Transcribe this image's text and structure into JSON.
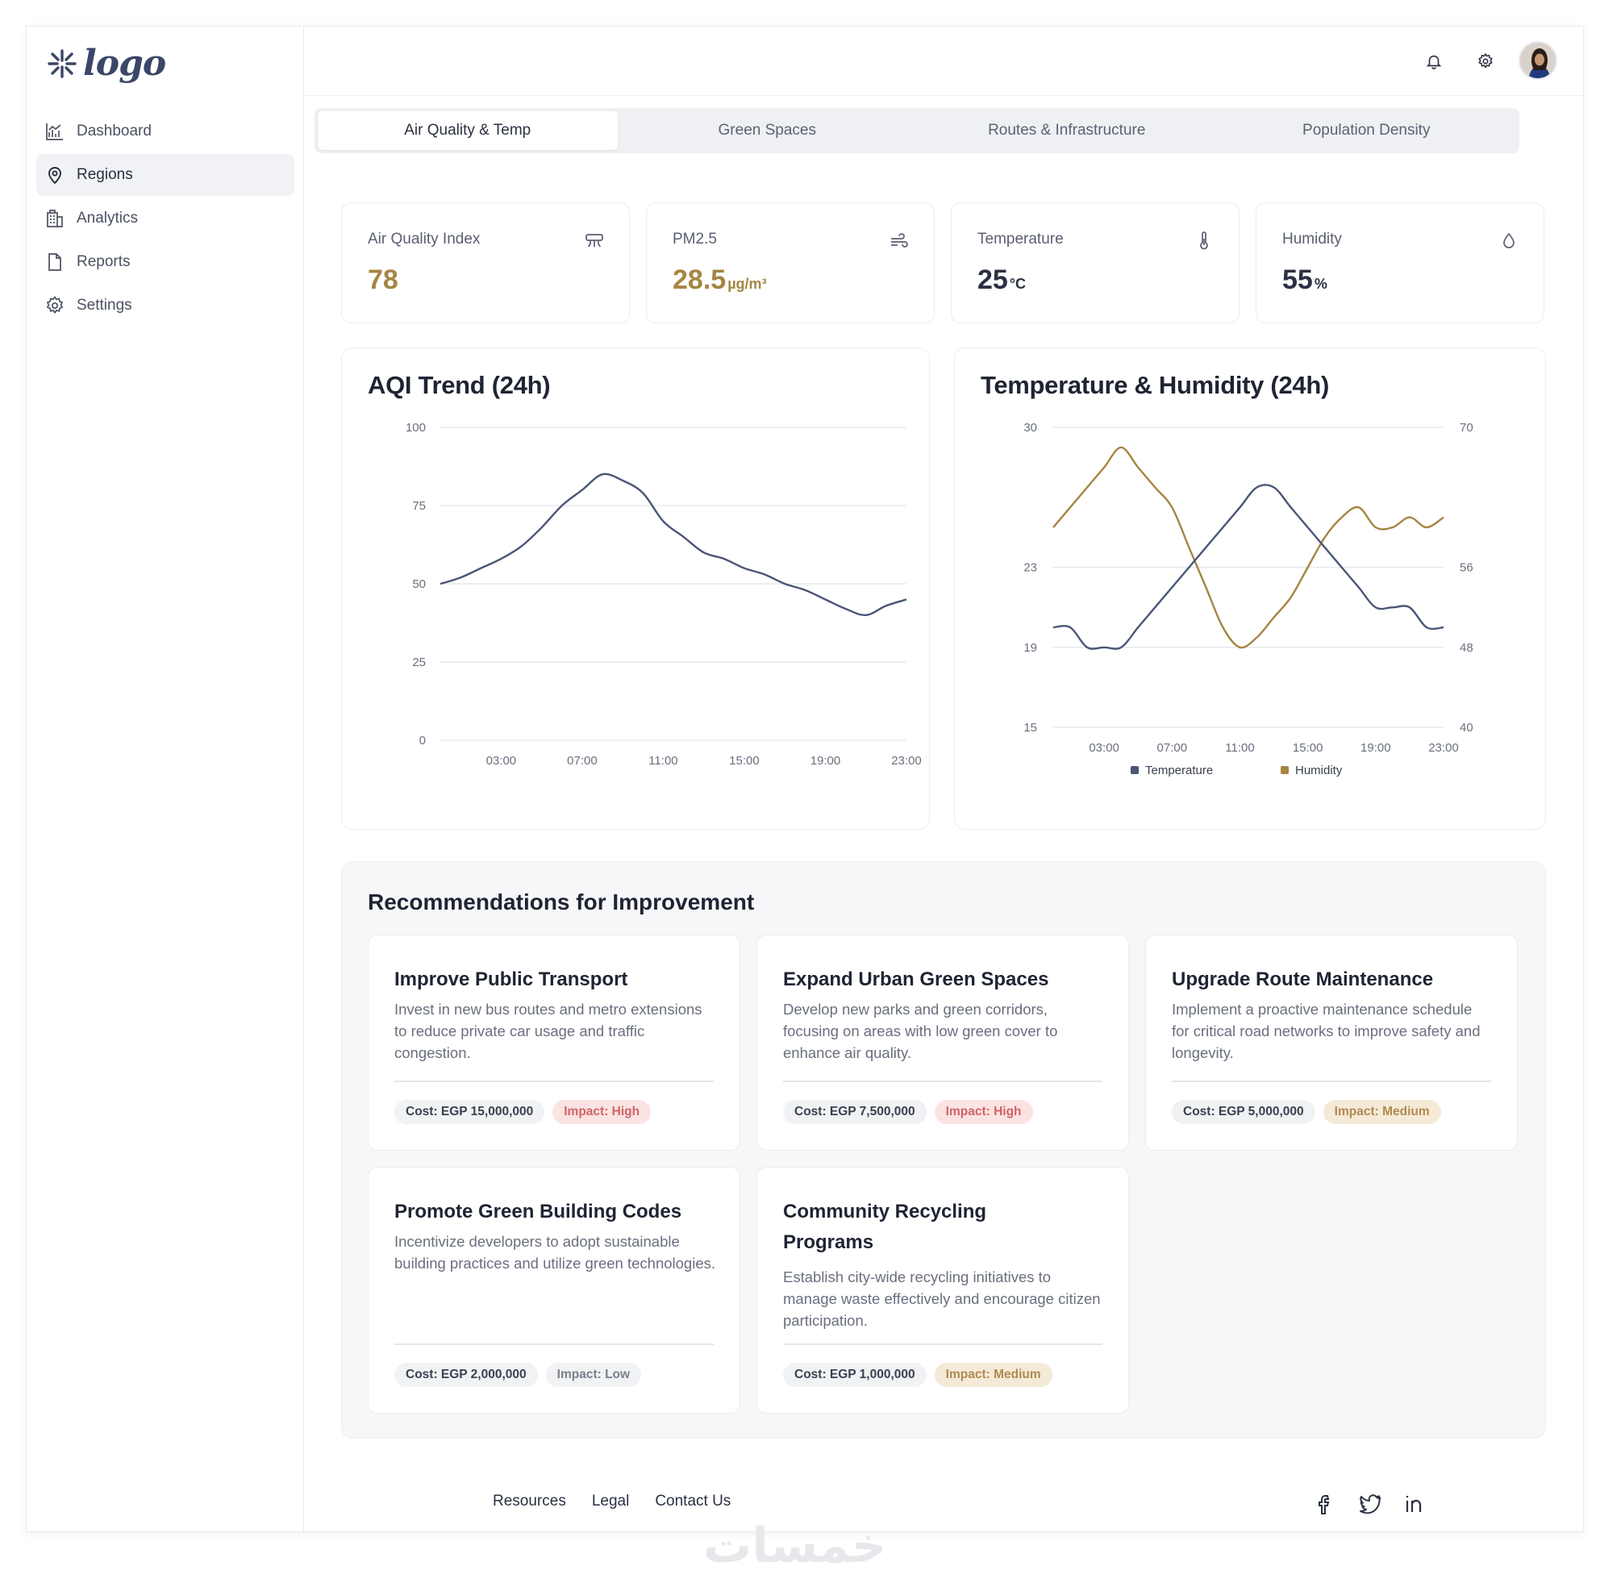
{
  "app": {
    "logo_text": "logo"
  },
  "sidebar": {
    "items": [
      {
        "label": "Dashboard",
        "icon": "chart-icon",
        "active": false
      },
      {
        "label": "Regions",
        "icon": "map-pin-icon",
        "active": true
      },
      {
        "label": "Analytics",
        "icon": "building-icon",
        "active": false
      },
      {
        "label": "Reports",
        "icon": "file-icon",
        "active": false
      },
      {
        "label": "Settings",
        "icon": "gear-icon",
        "active": false
      }
    ]
  },
  "header": {
    "icons": [
      "bell-icon",
      "gear-icon",
      "avatar"
    ]
  },
  "tabs": [
    {
      "label": "Air Quality & Temp",
      "active": true
    },
    {
      "label": "Green Spaces",
      "active": false
    },
    {
      "label": "Routes & Infrastructure",
      "active": false
    },
    {
      "label": "Population Density",
      "active": false
    }
  ],
  "stats": [
    {
      "label": "Air Quality Index",
      "value": "78",
      "unit": "",
      "icon": "air-filter-icon",
      "color": "#a58542"
    },
    {
      "label": "PM2.5",
      "value": "28.5",
      "unit": "µg/m³",
      "icon": "wind-icon",
      "color": "#a58542"
    },
    {
      "label": "Temperature",
      "value": "25",
      "unit": "°C",
      "icon": "thermometer-icon",
      "color": "#1f2433"
    },
    {
      "label": "Humidity",
      "value": "55",
      "unit": "%",
      "icon": "droplet-icon",
      "color": "#1f2433"
    }
  ],
  "colors": {
    "temperature": "#4a5578",
    "humidity": "#a58542",
    "aqi": "#4a5578"
  },
  "chart_data": [
    {
      "type": "line",
      "title": "AQI Trend (24h)",
      "ylim": [
        0,
        100
      ],
      "yticks": [
        "0",
        "25",
        "50",
        "75",
        "100"
      ],
      "xticks": [
        "03:00",
        "07:00",
        "11:00",
        "15:00",
        "19:00",
        "23:00"
      ],
      "x": [
        0,
        1,
        2,
        3,
        4,
        5,
        6,
        7,
        8,
        9,
        10,
        11,
        12,
        13,
        14,
        15,
        16,
        17,
        18,
        19,
        20,
        21,
        22,
        23
      ],
      "series": [
        {
          "values": [
            50,
            52,
            55,
            58,
            62,
            68,
            75,
            80,
            85,
            83,
            79,
            70,
            65,
            60,
            58,
            55,
            53,
            50,
            48,
            45,
            42,
            40,
            43,
            45
          ]
        }
      ]
    },
    {
      "type": "line",
      "title": "Temperature & Humidity (24h)",
      "ylim_left": [
        15,
        30
      ],
      "ylim_right": [
        40,
        70
      ],
      "yticks_left": [
        "15",
        "19",
        "23",
        "30"
      ],
      "yticks_right": [
        "40",
        "48",
        "56",
        "70"
      ],
      "xticks": [
        "03:00",
        "07:00",
        "11:00",
        "15:00",
        "19:00",
        "23:00"
      ],
      "legend_position": "bottom",
      "x": [
        0,
        1,
        2,
        3,
        4,
        5,
        6,
        7,
        8,
        9,
        10,
        11,
        12,
        13,
        14,
        15,
        16,
        17,
        18,
        19,
        20,
        21,
        22,
        23
      ],
      "series": [
        {
          "name": "Temperature",
          "axis": "left",
          "values": [
            20,
            20,
            19,
            19,
            19,
            20,
            21,
            22,
            23,
            24,
            25,
            26,
            27,
            27,
            26,
            25,
            24,
            23,
            22,
            21,
            21,
            21,
            20,
            20
          ]
        },
        {
          "name": "Humidity",
          "axis": "right",
          "values": [
            60,
            62,
            64,
            66,
            68,
            66,
            64,
            62,
            58,
            54,
            50,
            48,
            49,
            51,
            53,
            56,
            59,
            61,
            62,
            60,
            60,
            61,
            60,
            61
          ]
        }
      ]
    }
  ],
  "recommendations": {
    "title": "Recommendations for Improvement",
    "items": [
      {
        "title": "Improve Public Transport",
        "desc": "Invest in new bus routes and metro extensions to reduce private car usage and traffic congestion.",
        "cost": "Cost: EGP 15,000,000",
        "impact": "Impact: High",
        "level": "high"
      },
      {
        "title": "Expand Urban Green Spaces",
        "desc": "Develop new parks and green corridors, focusing on areas with low green cover to enhance air quality.",
        "cost": "Cost: EGP 7,500,000",
        "impact": "Impact: High",
        "level": "high"
      },
      {
        "title": "Upgrade Route Maintenance",
        "desc": "Implement a proactive maintenance schedule for critical road networks to improve safety and longevity.",
        "cost": "Cost: EGP 5,000,000",
        "impact": "Impact: Medium",
        "level": "medium"
      },
      {
        "title": "Promote Green Building Codes",
        "desc": "Incentivize developers to adopt sustainable building practices and utilize green technologies.",
        "cost": "Cost: EGP 2,000,000",
        "impact": "Impact: Low",
        "level": "low"
      },
      {
        "title": "Community Recycling Programs",
        "desc": "Establish city-wide recycling initiatives to manage waste effectively and encourage citizen participation.",
        "cost": "Cost: EGP 1,000,000",
        "impact": "Impact: Medium",
        "level": "medium"
      }
    ]
  },
  "footer": {
    "links": [
      "Resources",
      "Legal",
      "Contact Us"
    ],
    "social": [
      "facebook-icon",
      "twitter-icon",
      "linkedin-icon"
    ]
  },
  "watermark": "خمسات"
}
